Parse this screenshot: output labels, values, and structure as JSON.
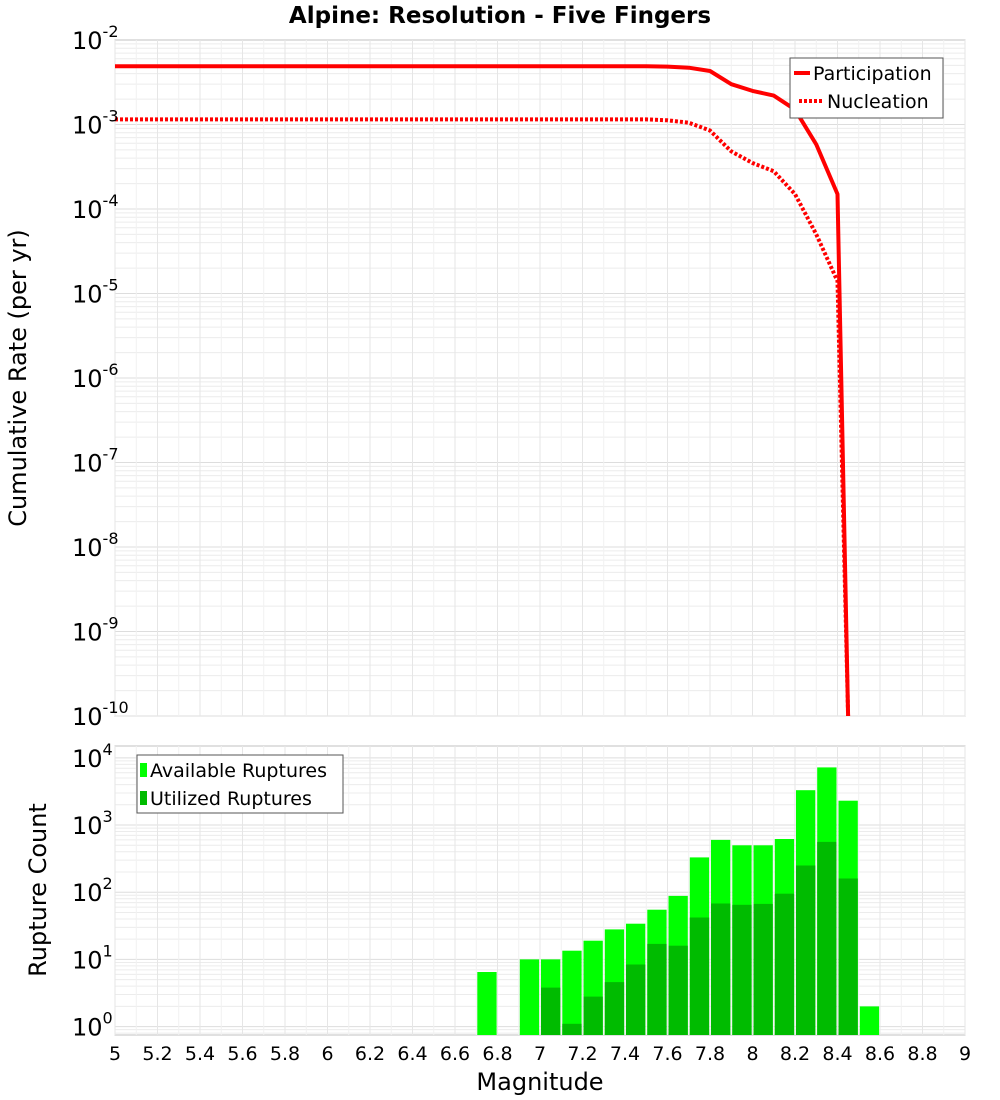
{
  "title": "Alpine: Resolution - Five Fingers",
  "chart_data": [
    {
      "type": "line",
      "ylabel": "Cumulative Rate (per yr)",
      "yscale": "log",
      "ylim": [
        1e-10,
        0.01
      ],
      "xlim": [
        5,
        9
      ],
      "y_tick_labels": [
        {
          "base": "10",
          "exp": "-2",
          "value": 0.01
        },
        {
          "base": "10",
          "exp": "-3",
          "value": 0.001
        },
        {
          "base": "10",
          "exp": "-4",
          "value": 0.0001
        },
        {
          "base": "10",
          "exp": "-5",
          "value": 1e-05
        },
        {
          "base": "10",
          "exp": "-6",
          "value": 1e-06
        },
        {
          "base": "10",
          "exp": "-7",
          "value": 1e-07
        },
        {
          "base": "10",
          "exp": "-8",
          "value": 1e-08
        },
        {
          "base": "10",
          "exp": "-9",
          "value": 1e-09
        },
        {
          "base": "10",
          "exp": "-10",
          "value": 1e-10
        }
      ],
      "legend_position": "top-right",
      "series": [
        {
          "name": "Participation",
          "style": "solid",
          "color": "#ff0000",
          "x": [
            5.0,
            5.5,
            6.0,
            6.5,
            7.0,
            7.4,
            7.5,
            7.6,
            7.7,
            7.8,
            7.9,
            8.0,
            8.1,
            8.2,
            8.3,
            8.4,
            8.45
          ],
          "y": [
            0.0049,
            0.0049,
            0.0049,
            0.0049,
            0.0049,
            0.0049,
            0.0049,
            0.00485,
            0.0047,
            0.0043,
            0.003,
            0.0025,
            0.0022,
            0.0015,
            0.00058,
            0.00015,
            1e-10
          ]
        },
        {
          "name": "Nucleation",
          "style": "dotted",
          "color": "#ff0000",
          "x": [
            5.0,
            5.5,
            6.0,
            6.5,
            7.0,
            7.4,
            7.5,
            7.6,
            7.7,
            7.8,
            7.9,
            8.0,
            8.1,
            8.2,
            8.3,
            8.4,
            8.45
          ],
          "y": [
            0.00115,
            0.00115,
            0.00115,
            0.00115,
            0.00115,
            0.00115,
            0.00115,
            0.00112,
            0.00105,
            0.00085,
            0.00048,
            0.00035,
            0.00028,
            0.00015,
            5e-05,
            1.4e-05,
            1e-10
          ]
        }
      ]
    },
    {
      "type": "bar",
      "xlabel": "Magnitude",
      "ylabel": "Rupture Count",
      "yscale": "log",
      "ylim": [
        0.75,
        15000
      ],
      "xlim": [
        5,
        9
      ],
      "bin_width": 0.1,
      "x_tick_labels": [
        "5",
        "5.2",
        "5.4",
        "5.6",
        "5.8",
        "6",
        "6.2",
        "6.4",
        "6.6",
        "6.8",
        "7",
        "7.2",
        "7.4",
        "7.6",
        "7.8",
        "8",
        "8.2",
        "8.4",
        "8.6",
        "8.8",
        "9"
      ],
      "y_tick_labels": [
        {
          "base": "10",
          "exp": "0",
          "value": 1
        },
        {
          "base": "10",
          "exp": "1",
          "value": 10
        },
        {
          "base": "10",
          "exp": "2",
          "value": 100
        },
        {
          "base": "10",
          "exp": "3",
          "value": 1000
        },
        {
          "base": "10",
          "exp": "4",
          "value": 10000
        }
      ],
      "legend_position": "top-left",
      "categories": [
        6.75,
        6.95,
        7.05,
        7.15,
        7.25,
        7.35,
        7.45,
        7.55,
        7.65,
        7.75,
        7.85,
        7.95,
        8.05,
        8.15,
        8.25,
        8.35,
        8.45,
        8.55
      ],
      "series": [
        {
          "name": "Available Ruptures",
          "color": "#00ff00",
          "values": [
            6.5,
            10,
            10,
            13.5,
            19,
            28,
            34,
            55,
            88,
            330,
            600,
            500,
            500,
            620,
            3300,
            7200,
            2300,
            2
          ]
        },
        {
          "name": "Utilized Ruptures",
          "color": "#00bb00",
          "values": [
            null,
            null,
            3.8,
            1.1,
            2.8,
            4.6,
            8.4,
            17,
            16,
            42,
            68,
            65,
            67,
            95,
            250,
            560,
            160,
            null
          ]
        }
      ]
    }
  ]
}
